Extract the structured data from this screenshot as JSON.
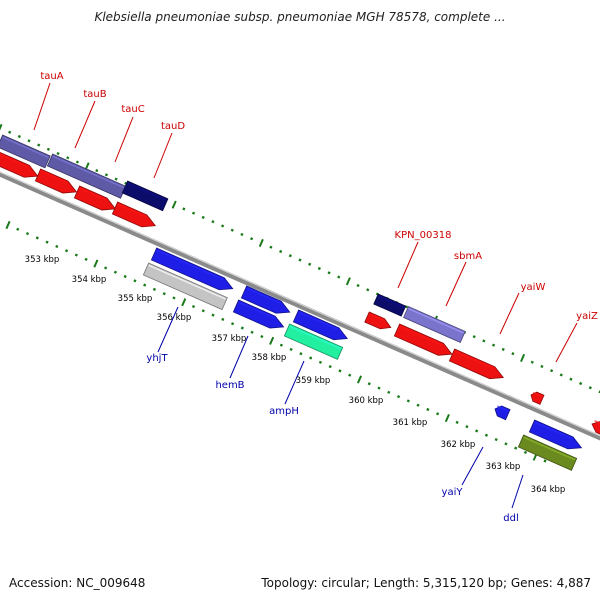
{
  "title": "Klebsiella pneumoniae subsp. pneumoniae MGH 78578, complete ...",
  "footer": {
    "accession": "Accession: NC_009648",
    "topology": "Topology: circular; Length: 5,315,120 bp; Genes: 4,887"
  },
  "colors": {
    "backbone": "#8a8a8a",
    "tick": "#1a7a1a",
    "top_label": "#cc0000",
    "bottom_label": "#0000aa",
    "scale_label": "#000000"
  },
  "scale_labels": [
    "353 kbp",
    "354 kbp",
    "355 kbp",
    "356 kbp",
    "357 kbp",
    "358 kbp",
    "359 kbp",
    "360 kbp",
    "361 kbp",
    "362 kbp",
    "363 kbp",
    "364 kbp"
  ],
  "genes_top": [
    {
      "name": "tauA",
      "color": "#5e5aa6"
    },
    {
      "name": "tauB",
      "color": "#5e5aa6"
    },
    {
      "name": "tauC",
      "color": "#5e5aa6"
    },
    {
      "name": "tauD",
      "color": "#0c0c6a"
    },
    {
      "name": "KPN_00318",
      "color": "#0c0c6a"
    },
    {
      "name": "sbmA",
      "color": "#7a74cc"
    },
    {
      "name": "yaiW",
      "color": "#ee1111"
    },
    {
      "name": "yaiZ",
      "color": "#ee1111"
    }
  ],
  "genes_bottom": [
    {
      "name": "yhjT",
      "color": "#c4c4c4"
    },
    {
      "name": "hemB",
      "color": "#1e1ee6"
    },
    {
      "name": "ampH",
      "color": "#22f0a0"
    },
    {
      "name": "yaiY",
      "color": "#1e1ee6"
    },
    {
      "name": "ddl",
      "color": "#6a8a20"
    }
  ]
}
